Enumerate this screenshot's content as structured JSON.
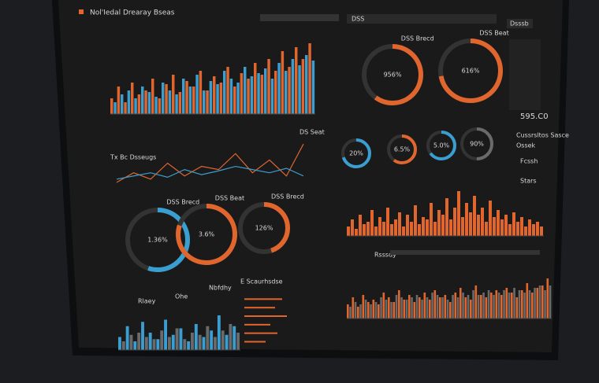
{
  "header": {
    "title": "Nol'Iedal Drearay Bseas",
    "tab": "DSS",
    "side": "Dsssb"
  },
  "labels": {
    "legend": "Tx Bc Dsseugs",
    "line_note": "DS Seat",
    "big_value": "595.C0",
    "menu": [
      "Cussrsltos Sasce",
      "Ossek",
      "Fcssh",
      "Stars"
    ],
    "bottom": [
      "Rlaey",
      "Ohe",
      "Nbfdhy",
      "E Scaurhsdse"
    ],
    "spikes_legend": "Rsssdy"
  },
  "gauges": [
    {
      "text": "956%",
      "caption": "DSS Brecd",
      "color": "#e0662e",
      "fill": 0.6
    },
    {
      "text": "616%",
      "caption": "DSS Beat",
      "color": "#e0662e",
      "fill": 0.72
    },
    {
      "text": "20%",
      "color": "#3a9fd0",
      "fill": 0.7
    },
    {
      "text": "6.5%",
      "color": "#e0662e",
      "fill": 0.6
    },
    {
      "text": "5.0%",
      "color": "#3a9fd0",
      "fill": 0.65
    },
    {
      "text": "90%",
      "color": "#6a6a6a",
      "fill": 0.5
    },
    {
      "text": "1.36%",
      "caption": "DSS Brecd",
      "color": "#3a9fd0",
      "fill": 0.55
    },
    {
      "text": "3.6%",
      "caption": "DSS Beat",
      "color": "#e0662e",
      "fill": 0.8
    },
    {
      "text": "126%",
      "caption": "DSS Brecd",
      "color": "#e0662e",
      "fill": 0.45
    }
  ],
  "chart_data": [
    {
      "type": "bar",
      "ylim": [
        0,
        100
      ],
      "series": [
        {
          "color": "#e0662e",
          "values": [
            20,
            35,
            15,
            40,
            25,
            30,
            45,
            20,
            38,
            50,
            28,
            42,
            35,
            55,
            30,
            48,
            40,
            60,
            35,
            52,
            45,
            65,
            50,
            70,
            55,
            80,
            60,
            85,
            70,
            90
          ]
        },
        {
          "color": "#3a9fd0",
          "values": [
            15,
            25,
            30,
            20,
            35,
            28,
            22,
            40,
            30,
            25,
            45,
            35,
            50,
            30,
            42,
            38,
            55,
            45,
            40,
            60,
            48,
            52,
            58,
            45,
            65,
            55,
            70,
            62,
            75,
            68
          ]
        }
      ]
    },
    {
      "type": "line",
      "ylim": [
        0,
        80
      ],
      "series": [
        {
          "color": "#e0662e",
          "values": [
            10,
            25,
            15,
            40,
            20,
            35,
            30,
            55,
            25,
            45,
            20,
            70
          ]
        },
        {
          "color": "#3a9fd0",
          "values": [
            15,
            20,
            25,
            18,
            30,
            22,
            28,
            35,
            30,
            25,
            32,
            20
          ]
        }
      ]
    },
    {
      "type": "bar",
      "ylim": [
        0,
        100
      ],
      "series": [
        {
          "color": "#e0662e",
          "values": [
            20,
            35,
            15,
            45,
            25,
            30,
            55,
            20,
            40,
            30,
            60,
            25,
            35,
            50,
            20,
            45,
            30,
            65,
            25,
            40,
            35,
            70,
            30,
            55,
            45,
            80,
            35,
            60,
            95,
            40,
            70,
            50,
            85,
            45,
            60,
            30,
            75,
            40,
            55,
            35,
            45,
            25,
            50,
            30,
            40,
            20,
            35,
            25,
            30,
            20
          ]
        }
      ]
    },
    {
      "type": "bar",
      "ylim": [
        0,
        100
      ],
      "series": [
        {
          "color": "#e0662e",
          "values": [
            30,
            45,
            25,
            50,
            35,
            40,
            30,
            55,
            45,
            35,
            60,
            40,
            50,
            35,
            45,
            55,
            40,
            60,
            45,
            50,
            35,
            55,
            65,
            45,
            40,
            70,
            50,
            45,
            55,
            60,
            50,
            65,
            55,
            45,
            60,
            75,
            55,
            65,
            70,
            85
          ]
        },
        {
          "color": "#6a6a6a",
          "values": [
            25,
            35,
            30,
            40,
            30,
            35,
            45,
            40,
            35,
            50,
            45,
            40,
            45,
            50,
            40,
            45,
            55,
            50,
            45,
            40,
            50,
            45,
            55,
            50,
            60,
            50,
            55,
            60,
            50,
            55,
            60,
            55,
            65,
            60,
            55,
            60,
            65,
            70,
            60,
            70
          ]
        }
      ]
    },
    {
      "type": "bar",
      "ylim": [
        0,
        100
      ],
      "series": [
        {
          "color": "#3a9fd0",
          "values": [
            30,
            55,
            20,
            65,
            40,
            25,
            70,
            35,
            50,
            20,
            60,
            30,
            45,
            80,
            35,
            55
          ]
        },
        {
          "color": "#6a6a6a",
          "values": [
            20,
            35,
            40,
            30,
            25,
            45,
            30,
            50,
            25,
            40,
            35,
            55,
            30,
            45,
            60,
            40
          ]
        }
      ]
    },
    {
      "type": "bar",
      "xlim": [
        0,
        100
      ],
      "series": [
        {
          "color": "#e0662e",
          "values": [
            80,
            65,
            90,
            55,
            70,
            45
          ]
        }
      ]
    }
  ]
}
